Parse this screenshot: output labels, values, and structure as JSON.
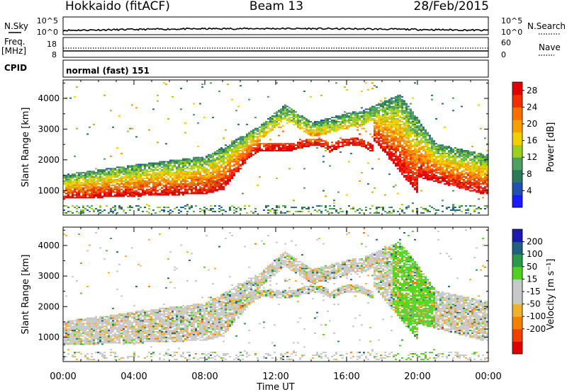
{
  "header": {
    "title": "Hokkaido (fitACF)",
    "beam": "Beam 13",
    "date": "28/Feb/2015"
  },
  "top_panels": {
    "nsky_label": "N.Sky",
    "nsearch_label": "N.Search",
    "nsky_ticks": [
      "10^5",
      "10^0"
    ],
    "nsearch_ticks": [
      "10^5",
      "10^0"
    ],
    "freq_label": "Freq.",
    "freq_unit": "[MHz]",
    "freq_ticks": [
      "18",
      "8"
    ],
    "nave_label": "Nave",
    "nave_ticks": [
      "60",
      "0"
    ],
    "cpid_label": "CPID",
    "cpid_value": "normal (fast) 151"
  },
  "colors": {
    "power_scale": [
      "#1a1aff",
      "#2050b0",
      "#2a7a5a",
      "#4fa060",
      "#9ad020",
      "#f0d000",
      "#f5a000",
      "#f57000",
      "#f03000",
      "#e00000"
    ],
    "velocity_scale": [
      "#e00000",
      "#f04000",
      "#f58000",
      "#f0b030",
      "#c8c8c8",
      "#c8c8c8",
      "#50d020",
      "#2a9a4a",
      "#206080",
      "#1a1ab0"
    ]
  },
  "chart_data": [
    {
      "type": "heatmap",
      "name": "power",
      "xlabel": "",
      "ylabel": "Slant Range [km]",
      "y_ticks": [
        1000,
        2000,
        3000,
        4000
      ],
      "ylim": [
        200,
        4600
      ],
      "x_ticks": [
        "00:00",
        "04:00",
        "08:00",
        "12:00",
        "16:00",
        "20:00",
        "00:00"
      ],
      "colorbar_label": "Power [dB]",
      "colorbar_ticks": [
        4,
        8,
        12,
        16,
        20,
        24,
        28
      ],
      "colorbar_range": [
        0,
        30
      ]
    },
    {
      "type": "heatmap",
      "name": "velocity",
      "xlabel": "Time UT",
      "ylabel": "Slant Range [km]",
      "y_ticks": [
        1000,
        2000,
        3000,
        4000
      ],
      "ylim": [
        200,
        4600
      ],
      "x_ticks": [
        "00:00",
        "04:00",
        "08:00",
        "12:00",
        "16:00",
        "20:00",
        "00:00"
      ],
      "colorbar_label": "Velocity [m s⁻¹]",
      "colorbar_ticks": [
        200,
        100,
        50,
        15,
        -15,
        -50,
        -100,
        -200
      ],
      "colorbar_range": [
        -250,
        250
      ]
    }
  ]
}
